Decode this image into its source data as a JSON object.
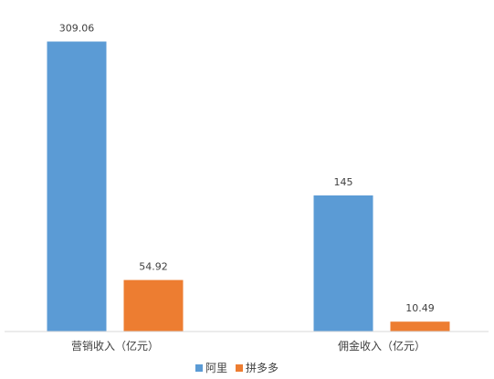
{
  "chart_data": {
    "type": "bar",
    "categories": [
      "营销收入（亿元）",
      "佣金收入（亿元）"
    ],
    "series": [
      {
        "name": "阿里",
        "values": [
          309.06,
          145
        ],
        "labels": [
          "309.06",
          "145"
        ],
        "color": "#5B9BD5"
      },
      {
        "name": "拼多多",
        "values": [
          54.92,
          10.49
        ],
        "labels": [
          "54.92",
          "10.49"
        ],
        "color": "#ED7D31"
      }
    ],
    "title": "",
    "xlabel": "",
    "ylabel": "",
    "ylim": [
      0,
      310
    ],
    "grid": false,
    "legend": "bottom",
    "axis_color": "#D9D9D9"
  }
}
